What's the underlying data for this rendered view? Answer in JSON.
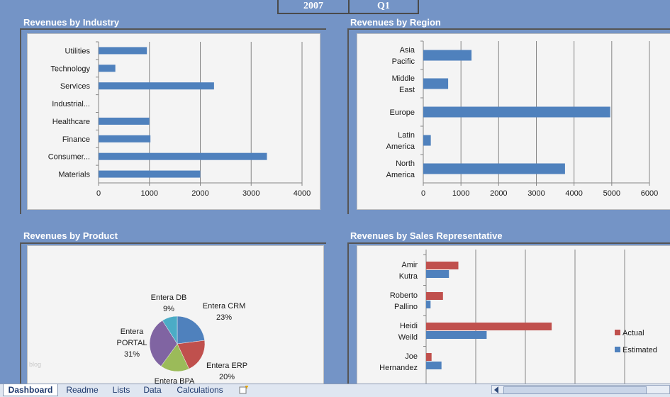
{
  "selectors": {
    "year": "2007",
    "quarter": "Q1"
  },
  "panels": {
    "industry": {
      "title": "Revenues by Industry"
    },
    "region": {
      "title": "Revenues by Region"
    },
    "product": {
      "title": "Revenues by Product"
    },
    "sales": {
      "title": "Revenues by Sales Representative"
    }
  },
  "watermark": "blog",
  "tabs": [
    "Dashboard",
    "Readme",
    "Lists",
    "Data",
    "Calculations"
  ],
  "colors": {
    "bar": "#4f81bd",
    "actual": "#c0504d",
    "estimated": "#4f81bd",
    "grid": "#868686"
  },
  "chart_data": [
    {
      "id": "industry",
      "type": "bar",
      "orientation": "horizontal",
      "title": "Revenues by Industry",
      "categories": [
        "Utilities",
        "Technology",
        "Services",
        "Industrial...",
        "Healthcare",
        "Finance",
        "Consumer...",
        "Materials"
      ],
      "values": [
        950,
        330,
        2270,
        0,
        1000,
        1020,
        3310,
        2000
      ],
      "xlim": [
        0,
        4000
      ],
      "ticks": [
        0,
        1000,
        2000,
        3000,
        4000
      ]
    },
    {
      "id": "region",
      "type": "bar",
      "orientation": "horizontal",
      "title": "Revenues by Region",
      "categories": [
        "Asia Pacific",
        "Middle East",
        "Europe",
        "Latin America",
        "North America"
      ],
      "values": [
        1280,
        660,
        4960,
        200,
        3760
      ],
      "xlim": [
        0,
        6000
      ],
      "ticks": [
        0,
        1000,
        2000,
        3000,
        4000,
        5000,
        6000
      ]
    },
    {
      "id": "product",
      "type": "pie",
      "title": "Revenues by Product",
      "slices": [
        {
          "label": "Entera CRM",
          "value": 23,
          "pct": "23%",
          "color": "#4f81bd"
        },
        {
          "label": "Entera ERP",
          "value": 20,
          "pct": "20%",
          "color": "#c0504d"
        },
        {
          "label": "Entera BPA",
          "value": 17,
          "pct": "17%",
          "color": "#9bbb59"
        },
        {
          "label": "Entera PORTAL",
          "value": 31,
          "pct": "31%",
          "color": "#8064a2"
        },
        {
          "label": "Entera DB",
          "value": 9,
          "pct": "9%",
          "color": "#4bacc6"
        }
      ]
    },
    {
      "id": "sales",
      "type": "bar",
      "orientation": "horizontal",
      "title": "Revenues by Sales Representative",
      "categories": [
        "Amir Kutra",
        "Roberto Pallino",
        "Heidi Weild",
        "Joe Hernandez"
      ],
      "series": [
        {
          "name": "Actual",
          "values": [
            650,
            340,
            2530,
            110
          ]
        },
        {
          "name": "Estimated",
          "values": [
            460,
            90,
            1220,
            310
          ]
        }
      ],
      "xlim": [
        0,
        4500
      ]
    }
  ]
}
